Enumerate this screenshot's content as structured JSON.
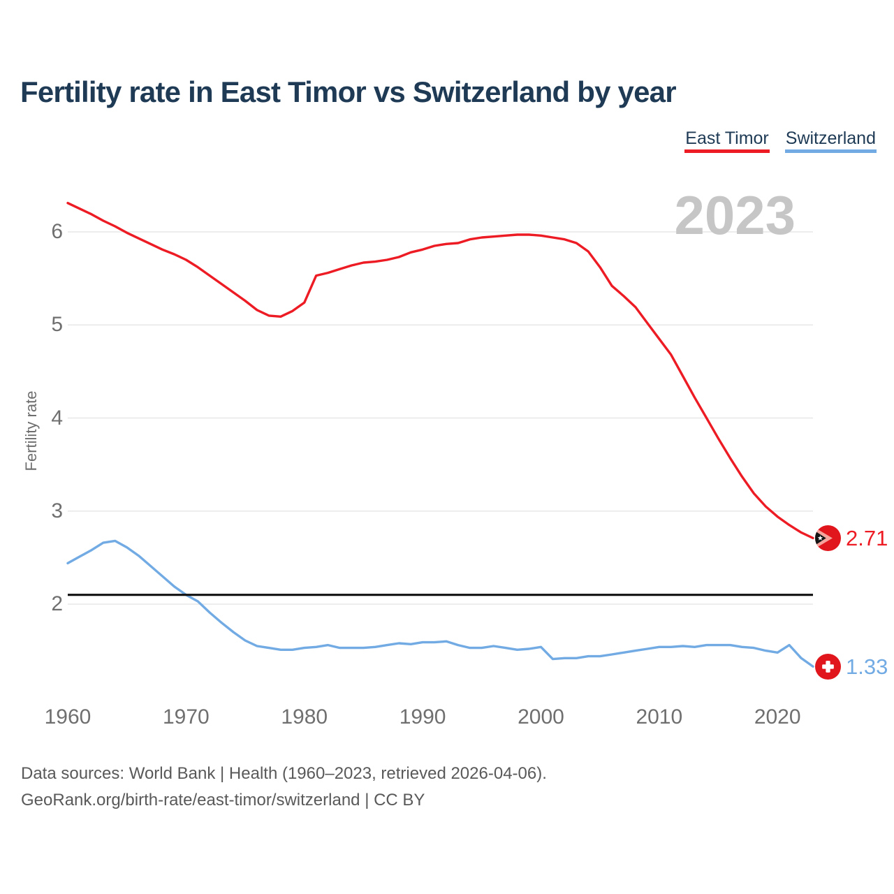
{
  "page": {
    "title": "Fertility rate in East Timor vs Switzerland by year",
    "watermark": "2023",
    "footer": {
      "line1": "Data sources: World Bank | Health (1960–2023, retrieved 2026-04-06).",
      "line2": "GeoRank.org/birth-rate/east-timor/switzerland | CC BY"
    }
  },
  "legend": {
    "items": [
      {
        "label": "East Timor",
        "color": "#ed1c24"
      },
      {
        "label": "Switzerland",
        "color": "#72abe4"
      }
    ]
  },
  "chart_data": {
    "type": "line",
    "title": "Fertility rate in East Timor vs Switzerland by year",
    "xlabel": "",
    "ylabel": "Fertility rate",
    "x_ticks": [
      1960,
      1970,
      1980,
      1990,
      2000,
      2010,
      2020
    ],
    "y_ticks": [
      2,
      3,
      4,
      5,
      6
    ],
    "xlim": [
      1960,
      2023
    ],
    "ylim": [
      1.1,
      6.55
    ],
    "grid": "horizontal",
    "legend_position": "top-right",
    "years": [
      1960,
      1961,
      1962,
      1963,
      1964,
      1965,
      1966,
      1967,
      1968,
      1969,
      1970,
      1971,
      1972,
      1973,
      1974,
      1975,
      1976,
      1977,
      1978,
      1979,
      1980,
      1981,
      1982,
      1983,
      1984,
      1985,
      1986,
      1987,
      1988,
      1989,
      1990,
      1991,
      1992,
      1993,
      1994,
      1995,
      1996,
      1997,
      1998,
      1999,
      2000,
      2001,
      2002,
      2003,
      2004,
      2005,
      2006,
      2007,
      2008,
      2009,
      2010,
      2011,
      2012,
      2013,
      2014,
      2015,
      2016,
      2017,
      2018,
      2019,
      2020,
      2021,
      2022,
      2023
    ],
    "series": [
      {
        "name": "East Timor",
        "color": "#ed1c24",
        "end_label": "2.71",
        "flag_icon": "east-timor-flag-icon",
        "values": [
          6.31,
          6.25,
          6.19,
          6.12,
          6.06,
          5.99,
          5.93,
          5.87,
          5.81,
          5.76,
          5.7,
          5.62,
          5.53,
          5.44,
          5.35,
          5.26,
          5.16,
          5.1,
          5.09,
          5.15,
          5.24,
          5.53,
          5.56,
          5.6,
          5.64,
          5.67,
          5.68,
          5.7,
          5.73,
          5.78,
          5.81,
          5.85,
          5.87,
          5.88,
          5.92,
          5.94,
          5.95,
          5.96,
          5.97,
          5.97,
          5.96,
          5.94,
          5.92,
          5.88,
          5.79,
          5.62,
          5.42,
          5.31,
          5.19,
          5.02,
          4.85,
          4.68,
          4.45,
          4.22,
          4.0,
          3.78,
          3.57,
          3.37,
          3.19,
          3.05,
          2.94,
          2.85,
          2.77,
          2.71
        ]
      },
      {
        "name": "Switzerland",
        "color": "#72abe4",
        "end_label": "1.33",
        "flag_icon": "switzerland-flag-icon",
        "values": [
          2.44,
          2.51,
          2.58,
          2.66,
          2.68,
          2.61,
          2.52,
          2.41,
          2.3,
          2.19,
          2.1,
          2.03,
          1.91,
          1.8,
          1.7,
          1.61,
          1.55,
          1.53,
          1.51,
          1.51,
          1.53,
          1.54,
          1.56,
          1.53,
          1.53,
          1.53,
          1.54,
          1.56,
          1.58,
          1.57,
          1.59,
          1.59,
          1.6,
          1.56,
          1.53,
          1.53,
          1.55,
          1.53,
          1.51,
          1.52,
          1.54,
          1.41,
          1.42,
          1.42,
          1.44,
          1.44,
          1.46,
          1.48,
          1.5,
          1.52,
          1.54,
          1.54,
          1.55,
          1.54,
          1.56,
          1.56,
          1.56,
          1.54,
          1.53,
          1.5,
          1.48,
          1.56,
          1.42,
          1.33
        ]
      }
    ],
    "baseline": {
      "value": 2.1,
      "color": "#111111"
    }
  }
}
